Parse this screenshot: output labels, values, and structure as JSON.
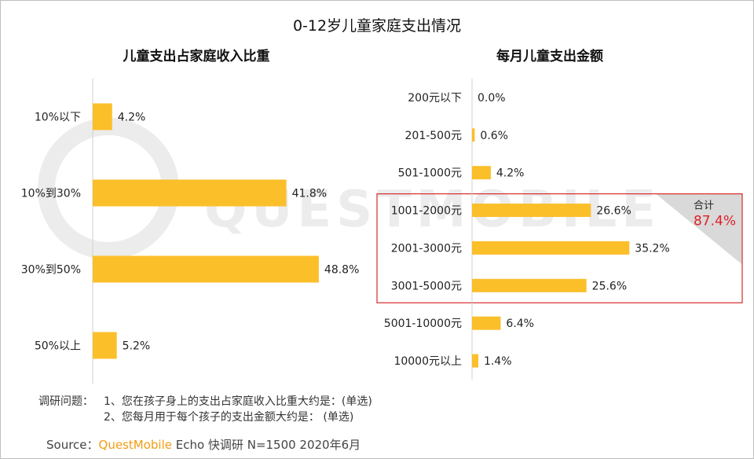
{
  "title": "0-12岁儿童家庭支出情况",
  "watermark": "QUESTMOBILE",
  "colors": {
    "bar": "#fbbf2a",
    "highlight_border": "#d62b2b",
    "highlight_total": "#e0202a",
    "triangle": "#d9d9d9"
  },
  "chart_data": [
    {
      "type": "bar",
      "orientation": "horizontal",
      "title": "儿童支出占家庭收入比重",
      "categories": [
        "10%以下",
        "10%到30%",
        "30%到50%",
        "50%以上"
      ],
      "values": [
        4.2,
        41.8,
        48.8,
        5.2
      ],
      "value_labels": [
        "4.2%",
        "41.8%",
        "48.8%",
        "5.2%"
      ],
      "unit": "%"
    },
    {
      "type": "bar",
      "orientation": "horizontal",
      "title": "每月儿童支出金额",
      "categories": [
        "200元以下",
        "201-500元",
        "501-1000元",
        "1001-2000元",
        "2001-3000元",
        "3001-5000元",
        "5001-10000元",
        "10000元以上"
      ],
      "values": [
        0.0,
        0.6,
        4.2,
        26.6,
        35.2,
        25.6,
        6.4,
        1.4
      ],
      "value_labels": [
        "0.0%",
        "0.6%",
        "4.2%",
        "26.6%",
        "35.2%",
        "25.6%",
        "6.4%",
        "1.4%"
      ],
      "unit": "%",
      "highlight": {
        "categories": [
          "1001-2000元",
          "2001-3000元",
          "3001-5000元"
        ],
        "label": "合计",
        "total": "87.4%"
      }
    }
  ],
  "notes": {
    "label": "调研问题：",
    "q1": "1、您在孩子身上的支出占家庭收入比重大约是：(单选)",
    "q2": "2、您每月用于每个孩子的支出金额大约是： (单选)"
  },
  "source": {
    "prefix": "Source：",
    "brand": "QuestMobile",
    "rest": " Echo 快调研 N=1500 2020年6月"
  }
}
